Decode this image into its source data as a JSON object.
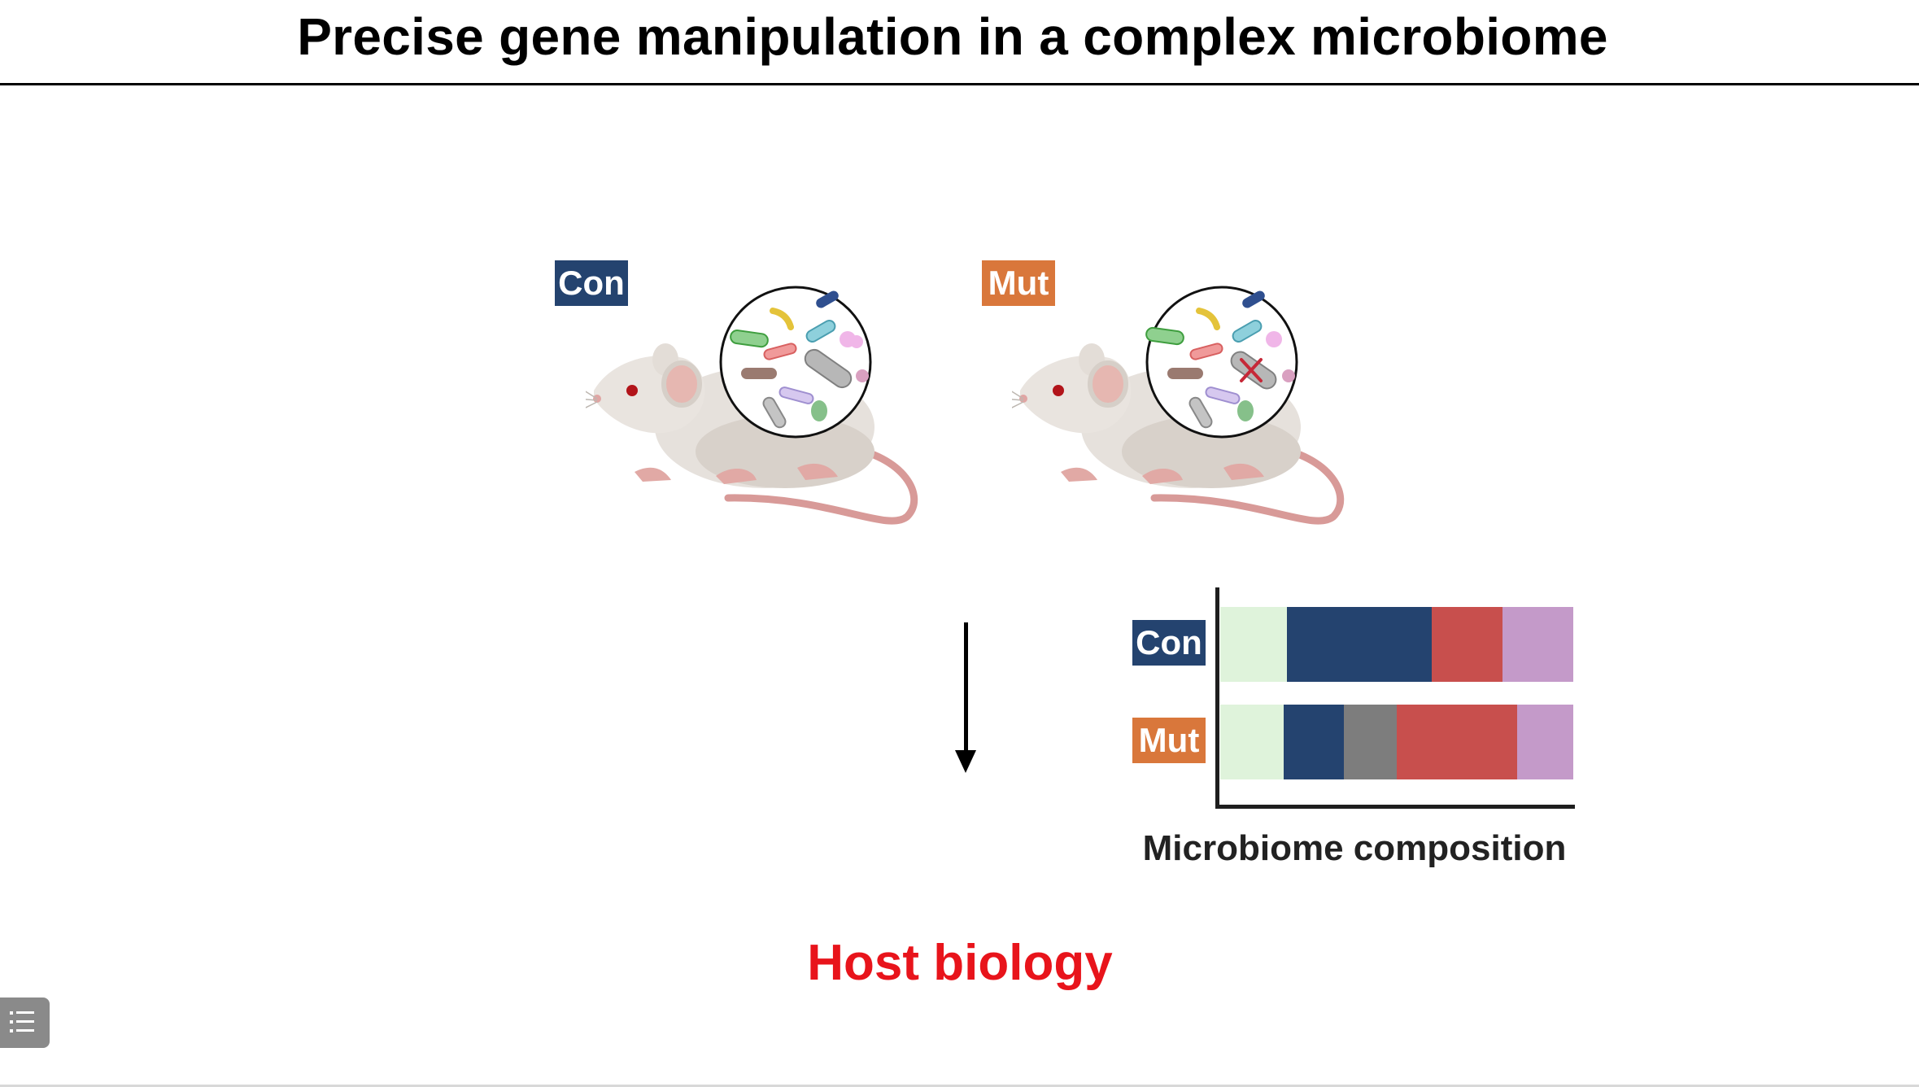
{
  "slide": {
    "title": "Precise gene manipulation in a complex microbiome",
    "top_row": {
      "con_label": "Con",
      "mut_label": "Mut"
    },
    "host_label": "Host biology"
  },
  "colors": {
    "con": "#24436f",
    "mut": "#d9773b",
    "host_text": "#e8141b"
  },
  "chart_data": {
    "type": "bar",
    "orientation": "horizontal-stacked",
    "categories": [
      "Con",
      "Mut"
    ],
    "series": [
      {
        "color": "#dff3db",
        "values": [
          0.19,
          0.18
        ]
      },
      {
        "color": "#24436f",
        "values": [
          0.41,
          0.17
        ]
      },
      {
        "color": "#7d7d7d",
        "values": [
          0.0,
          0.15
        ]
      },
      {
        "color": "#c84f4d",
        "values": [
          0.2,
          0.34
        ]
      },
      {
        "color": "#c49ac9",
        "values": [
          0.2,
          0.16
        ]
      }
    ],
    "xlabel": "Microbiome composition",
    "ylabel": "",
    "title": ""
  },
  "icons": [
    "mouse-illustration",
    "microbiome-magnifier-icon",
    "deleted-gene-cross-icon",
    "down-arrow-icon",
    "list-menu-icon"
  ]
}
